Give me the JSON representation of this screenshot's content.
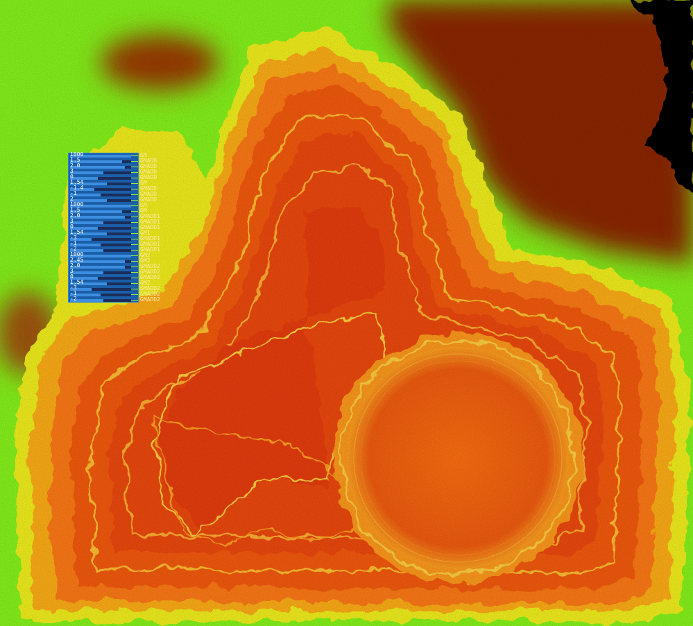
{
  "colors": {
    "low_green": "#86f51a",
    "yellow": "#f2f01a",
    "orange": "#ff7a12",
    "red": "#e8350e",
    "dark_brown": "#8c2504",
    "black": "#000000",
    "panel_blue": "#1a5fa8"
  },
  "panel": {
    "params": [
      {
        "value": "1000",
        "name": "GM",
        "level": 1.0
      },
      {
        "value": "1.5",
        "name": "GMADD",
        "level": 0.85
      },
      {
        "value": "2.0",
        "name": "GMADD",
        "level": 0.9
      },
      {
        "value": "3",
        "name": "GMADD",
        "level": 0.55
      },
      {
        "value": "0",
        "name": "GMADD",
        "level": 0.45
      },
      {
        "value": "1.54",
        "name": "GM",
        "level": 0.6
      },
      {
        "value": "-1.4",
        "name": "GMADD",
        "level": 0.4
      },
      {
        "value": "-1",
        "name": "GMADD",
        "level": 0.5
      },
      {
        "value": "2",
        "name": "GMADD",
        "level": 0.6
      },
      {
        "value": "1000",
        "name": "GM",
        "level": 1.0
      },
      {
        "value": "1.5",
        "name": "GM",
        "level": 0.85
      },
      {
        "value": "2.0",
        "name": "GMADD1",
        "level": 0.9
      },
      {
        "value": "3",
        "name": "GMADD1",
        "level": 0.55
      },
      {
        "value": "0",
        "name": "GMADD1",
        "level": 0.45
      },
      {
        "value": "1.54",
        "name": "GM1",
        "level": 0.6
      },
      {
        "value": "-3",
        "name": "GMADD1",
        "level": 0.35
      },
      {
        "value": "-1",
        "name": "GMADD1",
        "level": 0.5
      },
      {
        "value": "-2",
        "name": "GMADD1",
        "level": 0.55
      },
      {
        "value": "1000",
        "name": "GM2",
        "level": 1.0
      },
      {
        "value": "2.45",
        "name": "GM2",
        "level": 0.9
      },
      {
        "value": "2.0",
        "name": "GMADD2",
        "level": 0.9
      },
      {
        "value": "3",
        "name": "GMADD2",
        "level": 0.55
      },
      {
        "value": "0",
        "name": "GMADD2",
        "level": 0.45
      },
      {
        "value": "1.54",
        "name": "GM2",
        "level": 0.6
      },
      {
        "value": "-3",
        "name": "GMADD2",
        "level": 0.35
      },
      {
        "value": "-1",
        "name": "GMADD2",
        "level": 0.5
      },
      {
        "value": "-2",
        "name": "GMADD2",
        "level": 0.55
      }
    ]
  }
}
